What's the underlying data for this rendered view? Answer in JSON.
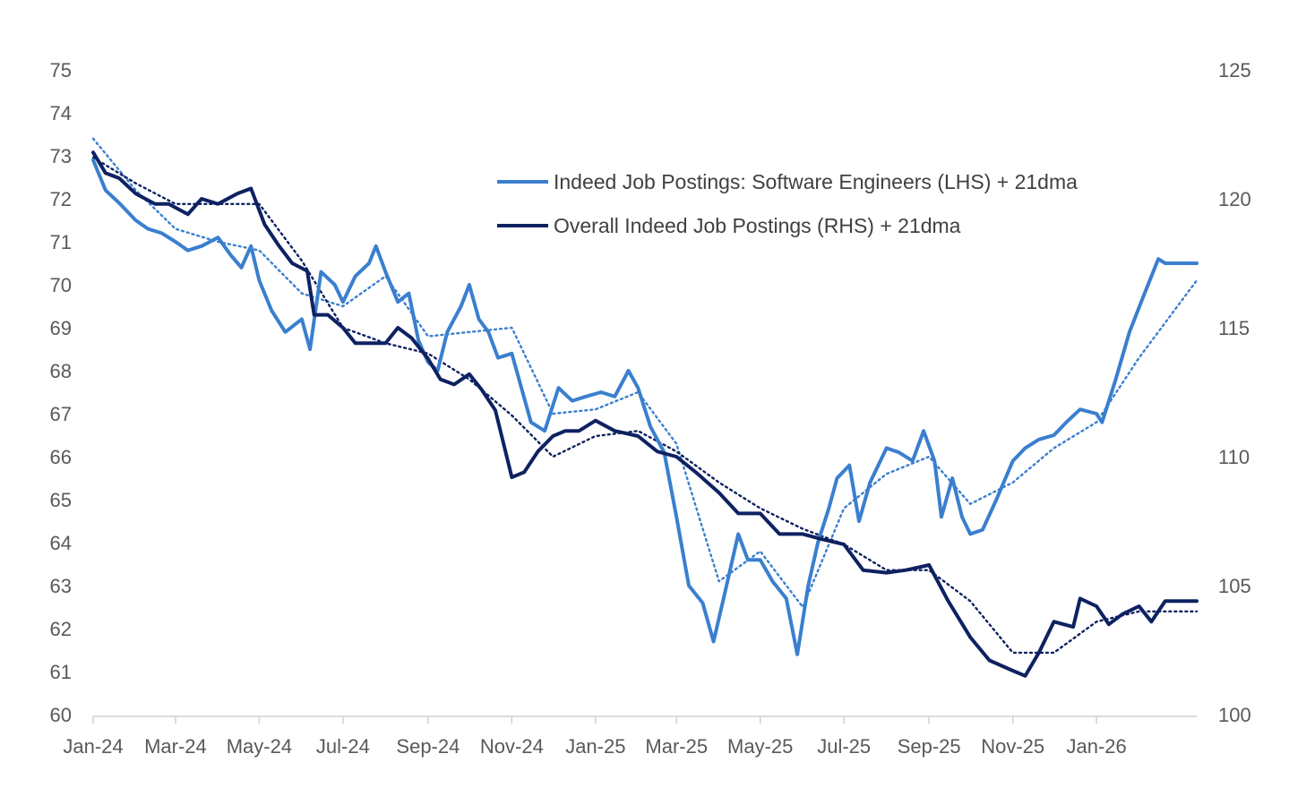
{
  "chart_data": {
    "type": "line",
    "title": "",
    "xlabel": "",
    "ylabel": "",
    "y_left": {
      "min": 60,
      "max": 75,
      "ticks": [
        60,
        61,
        62,
        63,
        64,
        65,
        66,
        67,
        68,
        69,
        70,
        71,
        72,
        73,
        74,
        75
      ]
    },
    "y_right": {
      "min": 100,
      "max": 125,
      "ticks": [
        100,
        105,
        110,
        115,
        120,
        125
      ]
    },
    "x_axis": {
      "start": "2024-01-01",
      "end": "2026-03-15",
      "tick_dates": [
        "2024-01-01",
        "2024-03-01",
        "2024-05-01",
        "2024-07-01",
        "2024-09-01",
        "2024-11-01",
        "2025-01-01",
        "2025-03-01",
        "2025-05-01",
        "2025-07-01",
        "2025-09-01",
        "2025-11-01",
        "2026-01-01"
      ],
      "tick_labels": [
        "Jan-24",
        "Mar-24",
        "May-24",
        "Jul-24",
        "Sep-24",
        "Nov-24",
        "Jan-25",
        "Mar-25",
        "May-25",
        "Jul-25",
        "Sep-25",
        "Nov-25",
        "Jan-26"
      ]
    },
    "grid": false,
    "legend_position": "top-center",
    "legend": [
      {
        "label": "Indeed Job Postings: Software Engineers (LHS) + 21dma",
        "color": "#3a7fcf"
      },
      {
        "label": "Overall Indeed Job Postings (RHS) + 21dma",
        "color": "#0e2161"
      }
    ],
    "series": [
      {
        "name": "Indeed Job Postings: Software Engineers (LHS) + 21dma",
        "axis": "left",
        "color": "#3a7fcf",
        "style": "solid",
        "points": [
          [
            "2024-01-01",
            72.9
          ],
          [
            "2024-01-10",
            72.2
          ],
          [
            "2024-01-20",
            71.9
          ],
          [
            "2024-02-01",
            71.5
          ],
          [
            "2024-02-10",
            71.3
          ],
          [
            "2024-02-20",
            71.2
          ],
          [
            "2024-03-01",
            71.0
          ],
          [
            "2024-03-10",
            70.8
          ],
          [
            "2024-03-20",
            70.9
          ],
          [
            "2024-04-01",
            71.1
          ],
          [
            "2024-04-10",
            70.7
          ],
          [
            "2024-04-18",
            70.4
          ],
          [
            "2024-04-25",
            70.9
          ],
          [
            "2024-05-01",
            70.1
          ],
          [
            "2024-05-10",
            69.4
          ],
          [
            "2024-05-20",
            68.9
          ],
          [
            "2024-06-01",
            69.2
          ],
          [
            "2024-06-07",
            68.5
          ],
          [
            "2024-06-15",
            70.3
          ],
          [
            "2024-06-25",
            70.0
          ],
          [
            "2024-07-01",
            69.6
          ],
          [
            "2024-07-10",
            70.2
          ],
          [
            "2024-07-20",
            70.5
          ],
          [
            "2024-07-25",
            70.9
          ],
          [
            "2024-08-01",
            70.3
          ],
          [
            "2024-08-10",
            69.6
          ],
          [
            "2024-08-18",
            69.8
          ],
          [
            "2024-08-25",
            68.7
          ],
          [
            "2024-09-01",
            68.2
          ],
          [
            "2024-09-08",
            68.0
          ],
          [
            "2024-09-15",
            68.9
          ],
          [
            "2024-09-25",
            69.5
          ],
          [
            "2024-10-01",
            70.0
          ],
          [
            "2024-10-08",
            69.2
          ],
          [
            "2024-10-15",
            68.9
          ],
          [
            "2024-10-22",
            68.3
          ],
          [
            "2024-11-01",
            68.4
          ],
          [
            "2024-11-08",
            67.6
          ],
          [
            "2024-11-15",
            66.8
          ],
          [
            "2024-11-25",
            66.6
          ],
          [
            "2024-12-05",
            67.6
          ],
          [
            "2024-12-15",
            67.3
          ],
          [
            "2024-12-25",
            67.4
          ],
          [
            "2025-01-05",
            67.5
          ],
          [
            "2025-01-15",
            67.4
          ],
          [
            "2025-01-25",
            68.0
          ],
          [
            "2025-02-01",
            67.6
          ],
          [
            "2025-02-10",
            66.7
          ],
          [
            "2025-02-20",
            66.1
          ],
          [
            "2025-03-01",
            64.6
          ],
          [
            "2025-03-10",
            63.0
          ],
          [
            "2025-03-20",
            62.6
          ],
          [
            "2025-03-28",
            61.7
          ],
          [
            "2025-04-05",
            62.8
          ],
          [
            "2025-04-15",
            64.2
          ],
          [
            "2025-04-22",
            63.6
          ],
          [
            "2025-05-01",
            63.6
          ],
          [
            "2025-05-10",
            63.1
          ],
          [
            "2025-05-20",
            62.7
          ],
          [
            "2025-05-28",
            61.4
          ],
          [
            "2025-06-05",
            63.0
          ],
          [
            "2025-06-12",
            64.0
          ],
          [
            "2025-06-20",
            64.8
          ],
          [
            "2025-06-26",
            65.5
          ],
          [
            "2025-07-05",
            65.8
          ],
          [
            "2025-07-12",
            64.5
          ],
          [
            "2025-07-20",
            65.4
          ],
          [
            "2025-08-01",
            66.2
          ],
          [
            "2025-08-10",
            66.1
          ],
          [
            "2025-08-20",
            65.9
          ],
          [
            "2025-08-28",
            66.6
          ],
          [
            "2025-09-05",
            65.9
          ],
          [
            "2025-09-10",
            64.6
          ],
          [
            "2025-09-18",
            65.5
          ],
          [
            "2025-09-25",
            64.6
          ],
          [
            "2025-10-01",
            64.2
          ],
          [
            "2025-10-10",
            64.3
          ],
          [
            "2025-10-20",
            65.0
          ],
          [
            "2025-11-01",
            65.9
          ],
          [
            "2025-11-10",
            66.2
          ],
          [
            "2025-11-20",
            66.4
          ],
          [
            "2025-12-01",
            66.5
          ],
          [
            "2025-12-10",
            66.8
          ],
          [
            "2025-12-20",
            67.1
          ],
          [
            "2026-01-01",
            67.0
          ],
          [
            "2026-01-05",
            66.8
          ],
          [
            "2026-01-15",
            67.8
          ],
          [
            "2026-01-25",
            68.9
          ],
          [
            "2026-02-05",
            69.8
          ],
          [
            "2026-02-15",
            70.6
          ],
          [
            "2026-02-20",
            70.5
          ],
          [
            "2026-03-15",
            70.5
          ]
        ]
      },
      {
        "name": "Software Engineers 21dma",
        "axis": "left",
        "color": "#3a7fcf",
        "style": "dotted",
        "points": [
          [
            "2024-01-01",
            73.4
          ],
          [
            "2024-02-01",
            72.2
          ],
          [
            "2024-03-01",
            71.3
          ],
          [
            "2024-04-01",
            71.0
          ],
          [
            "2024-05-01",
            70.8
          ],
          [
            "2024-06-01",
            69.8
          ],
          [
            "2024-07-01",
            69.5
          ],
          [
            "2024-08-01",
            70.2
          ],
          [
            "2024-09-01",
            68.8
          ],
          [
            "2024-10-01",
            68.9
          ],
          [
            "2024-11-01",
            69.0
          ],
          [
            "2024-12-01",
            67.0
          ],
          [
            "2025-01-01",
            67.1
          ],
          [
            "2025-02-01",
            67.5
          ],
          [
            "2025-03-01",
            66.3
          ],
          [
            "2025-04-01",
            63.1
          ],
          [
            "2025-05-01",
            63.8
          ],
          [
            "2025-06-01",
            62.5
          ],
          [
            "2025-07-01",
            64.8
          ],
          [
            "2025-08-01",
            65.6
          ],
          [
            "2025-09-01",
            66.0
          ],
          [
            "2025-10-01",
            64.9
          ],
          [
            "2025-11-01",
            65.4
          ],
          [
            "2025-12-01",
            66.2
          ],
          [
            "2026-01-01",
            66.8
          ],
          [
            "2026-02-01",
            68.3
          ],
          [
            "2026-03-15",
            70.1
          ]
        ]
      },
      {
        "name": "Overall Indeed Job Postings (RHS) + 21dma",
        "axis": "right",
        "color": "#0e2161",
        "style": "solid",
        "points": [
          [
            "2024-01-01",
            121.8
          ],
          [
            "2024-01-10",
            121.0
          ],
          [
            "2024-01-20",
            120.8
          ],
          [
            "2024-02-01",
            120.2
          ],
          [
            "2024-02-15",
            119.8
          ],
          [
            "2024-02-25",
            119.8
          ],
          [
            "2024-03-10",
            119.4
          ],
          [
            "2024-03-20",
            120.0
          ],
          [
            "2024-04-01",
            119.8
          ],
          [
            "2024-04-15",
            120.2
          ],
          [
            "2024-04-25",
            120.4
          ],
          [
            "2024-05-05",
            119.0
          ],
          [
            "2024-05-15",
            118.2
          ],
          [
            "2024-05-25",
            117.5
          ],
          [
            "2024-06-05",
            117.2
          ],
          [
            "2024-06-10",
            115.5
          ],
          [
            "2024-06-20",
            115.5
          ],
          [
            "2024-07-01",
            115.0
          ],
          [
            "2024-07-10",
            114.4
          ],
          [
            "2024-07-20",
            114.4
          ],
          [
            "2024-08-01",
            114.4
          ],
          [
            "2024-08-10",
            115.0
          ],
          [
            "2024-08-20",
            114.6
          ],
          [
            "2024-09-01",
            113.8
          ],
          [
            "2024-09-10",
            113.0
          ],
          [
            "2024-09-20",
            112.8
          ],
          [
            "2024-10-01",
            113.2
          ],
          [
            "2024-10-10",
            112.6
          ],
          [
            "2024-10-20",
            111.8
          ],
          [
            "2024-11-01",
            109.2
          ],
          [
            "2024-11-10",
            109.4
          ],
          [
            "2024-11-20",
            110.2
          ],
          [
            "2024-12-01",
            110.8
          ],
          [
            "2024-12-10",
            111.0
          ],
          [
            "2024-12-20",
            111.0
          ],
          [
            "2025-01-01",
            111.4
          ],
          [
            "2025-01-15",
            111.0
          ],
          [
            "2025-02-01",
            110.8
          ],
          [
            "2025-02-15",
            110.2
          ],
          [
            "2025-03-01",
            110.0
          ],
          [
            "2025-03-15",
            109.4
          ],
          [
            "2025-04-01",
            108.6
          ],
          [
            "2025-04-15",
            107.8
          ],
          [
            "2025-05-01",
            107.8
          ],
          [
            "2025-05-15",
            107.0
          ],
          [
            "2025-06-01",
            107.0
          ],
          [
            "2025-06-15",
            106.8
          ],
          [
            "2025-07-01",
            106.6
          ],
          [
            "2025-07-15",
            105.6
          ],
          [
            "2025-08-01",
            105.5
          ],
          [
            "2025-08-15",
            105.6
          ],
          [
            "2025-09-01",
            105.8
          ],
          [
            "2025-09-15",
            104.4
          ],
          [
            "2025-10-01",
            103.0
          ],
          [
            "2025-10-15",
            102.1
          ],
          [
            "2025-11-01",
            101.7
          ],
          [
            "2025-11-10",
            101.5
          ],
          [
            "2025-11-20",
            102.4
          ],
          [
            "2025-12-01",
            103.6
          ],
          [
            "2025-12-15",
            103.4
          ],
          [
            "2025-12-20",
            104.5
          ],
          [
            "2026-01-01",
            104.2
          ],
          [
            "2026-01-10",
            103.5
          ],
          [
            "2026-01-20",
            103.9
          ],
          [
            "2026-02-01",
            104.2
          ],
          [
            "2026-02-10",
            103.6
          ],
          [
            "2026-02-20",
            104.4
          ],
          [
            "2026-03-15",
            104.4
          ]
        ]
      },
      {
        "name": "Overall 21dma",
        "axis": "right",
        "color": "#0e2161",
        "style": "dotted",
        "points": [
          [
            "2024-01-01",
            121.6
          ],
          [
            "2024-02-01",
            120.6
          ],
          [
            "2024-03-01",
            119.8
          ],
          [
            "2024-04-01",
            119.8
          ],
          [
            "2024-05-01",
            119.8
          ],
          [
            "2024-06-01",
            117.6
          ],
          [
            "2024-07-01",
            115.0
          ],
          [
            "2024-08-01",
            114.4
          ],
          [
            "2024-09-01",
            114.0
          ],
          [
            "2024-10-01",
            113.0
          ],
          [
            "2024-11-01",
            111.6
          ],
          [
            "2024-12-01",
            110.0
          ],
          [
            "2025-01-01",
            110.8
          ],
          [
            "2025-02-01",
            111.0
          ],
          [
            "2025-03-01",
            110.2
          ],
          [
            "2025-04-01",
            109.0
          ],
          [
            "2025-05-01",
            108.0
          ],
          [
            "2025-06-01",
            107.2
          ],
          [
            "2025-07-01",
            106.6
          ],
          [
            "2025-08-01",
            105.6
          ],
          [
            "2025-09-01",
            105.6
          ],
          [
            "2025-10-01",
            104.4
          ],
          [
            "2025-11-01",
            102.4
          ],
          [
            "2025-12-01",
            102.4
          ],
          [
            "2026-01-01",
            103.6
          ],
          [
            "2026-02-01",
            104.0
          ],
          [
            "2026-03-15",
            104.0
          ]
        ]
      }
    ]
  }
}
